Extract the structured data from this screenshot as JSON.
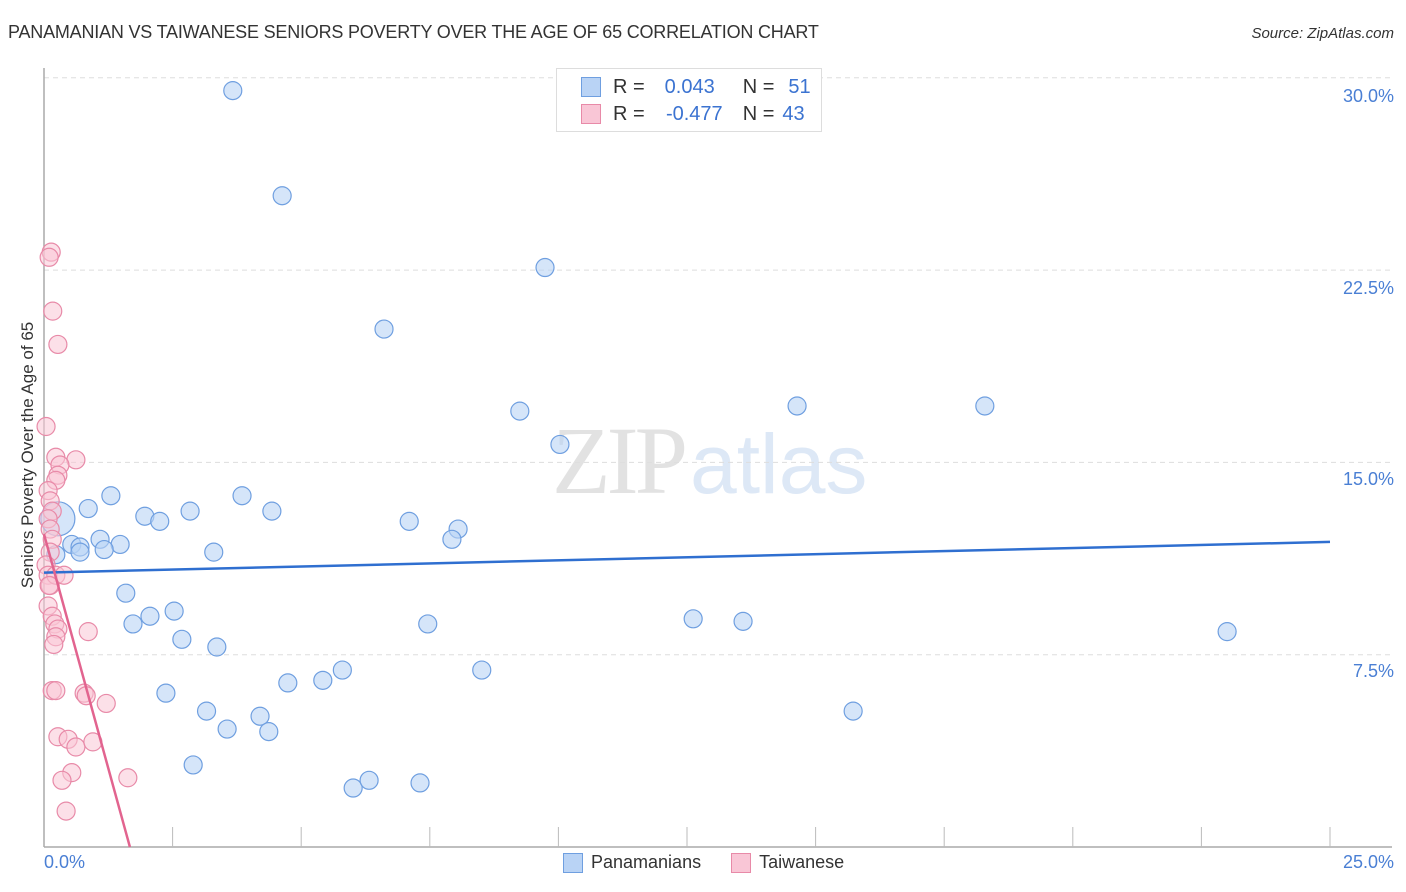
{
  "header": {
    "title": "PANAMANIAN VS TAIWANESE SENIORS POVERTY OVER THE AGE OF 65 CORRELATION CHART",
    "source": "Source: ZipAtlas.com"
  },
  "axes": {
    "y_label": "Seniors Poverty Over the Age of 65",
    "y_ticks": [
      "30.0%",
      "22.5%",
      "15.0%",
      "7.5%"
    ],
    "x_min_label": "0.0%",
    "x_max_label": "25.0%"
  },
  "legend_box": {
    "rows": [
      {
        "r_label": "R =",
        "r_value": "0.043",
        "n_label": "N =",
        "n_value": "51",
        "color": "#6f9fe0",
        "fill": "#b9d3f5"
      },
      {
        "r_label": "R =",
        "r_value": "-0.477",
        "n_label": "N =",
        "n_value": "43",
        "color": "#e88aa8",
        "fill": "#f9c6d6"
      }
    ]
  },
  "bottom_legend": {
    "items": [
      {
        "label": "Panamanians",
        "color": "#6f9fe0",
        "fill": "#b9d3f5"
      },
      {
        "label": "Taiwanese",
        "color": "#e88aa8",
        "fill": "#f9c6d6"
      }
    ]
  },
  "watermark": {
    "zip": "ZIP",
    "atlas": "atlas"
  },
  "colors": {
    "blue_line": "#2f6fd0",
    "pink_line": "#e2648f",
    "tick_text": "#4a7fd4",
    "grid": "#dddddd"
  },
  "chart_data": {
    "type": "scatter",
    "title": "PANAMANIAN VS TAIWANESE SENIORS POVERTY OVER THE AGE OF 65 CORRELATION CHART",
    "xlabel": "",
    "ylabel": "Seniors Poverty Over the Age of 65",
    "xlim": [
      0,
      25
    ],
    "ylim": [
      0,
      31
    ],
    "x_ticks": [
      "0.0%",
      "25.0%"
    ],
    "y_ticks": [
      7.5,
      15.0,
      22.5,
      30.0
    ],
    "grid": true,
    "legend_position": "top-center and bottom",
    "series": [
      {
        "name": "Panamanians",
        "R": 0.043,
        "N": 51,
        "trend": {
          "x": [
            0,
            25
          ],
          "y": [
            10.7,
            11.9
          ]
        },
        "points": [
          [
            3.67,
            29.5
          ],
          [
            4.63,
            25.4
          ],
          [
            9.74,
            22.6
          ],
          [
            6.61,
            20.2
          ],
          [
            9.25,
            17.0
          ],
          [
            14.64,
            17.2
          ],
          [
            18.29,
            17.2
          ],
          [
            10.03,
            15.7
          ],
          [
            0.27,
            12.8
          ],
          [
            0.86,
            13.2
          ],
          [
            1.3,
            13.7
          ],
          [
            1.96,
            12.9
          ],
          [
            2.25,
            12.7
          ],
          [
            2.84,
            13.1
          ],
          [
            3.85,
            13.7
          ],
          [
            4.43,
            13.1
          ],
          [
            7.1,
            12.7
          ],
          [
            8.05,
            12.4
          ],
          [
            7.93,
            12.0
          ],
          [
            0.54,
            11.8
          ],
          [
            0.7,
            11.7
          ],
          [
            1.09,
            12.0
          ],
          [
            1.48,
            11.8
          ],
          [
            0.7,
            11.5
          ],
          [
            1.17,
            11.6
          ],
          [
            3.3,
            11.5
          ],
          [
            0.23,
            11.4
          ],
          [
            1.59,
            9.9
          ],
          [
            1.73,
            8.7
          ],
          [
            2.06,
            9.0
          ],
          [
            2.53,
            9.2
          ],
          [
            2.68,
            8.1
          ],
          [
            3.36,
            7.8
          ],
          [
            7.46,
            8.7
          ],
          [
            12.62,
            8.9
          ],
          [
            13.59,
            8.8
          ],
          [
            23.0,
            8.4
          ],
          [
            5.8,
            6.9
          ],
          [
            8.51,
            6.9
          ],
          [
            4.74,
            6.4
          ],
          [
            5.42,
            6.5
          ],
          [
            2.37,
            6.0
          ],
          [
            3.16,
            5.3
          ],
          [
            15.73,
            5.3
          ],
          [
            4.2,
            5.1
          ],
          [
            3.56,
            4.6
          ],
          [
            4.37,
            4.5
          ],
          [
            2.9,
            3.2
          ],
          [
            6.01,
            2.3
          ],
          [
            6.32,
            2.6
          ],
          [
            7.31,
            2.5
          ]
        ]
      },
      {
        "name": "Taiwanese",
        "R": -0.477,
        "N": 43,
        "trend": {
          "x": [
            0,
            1.67
          ],
          "y": [
            12.2,
            0
          ]
        },
        "points": [
          [
            0.14,
            23.2
          ],
          [
            0.1,
            23.0
          ],
          [
            0.17,
            20.9
          ],
          [
            0.27,
            19.6
          ],
          [
            0.04,
            16.4
          ],
          [
            0.23,
            15.2
          ],
          [
            0.62,
            15.1
          ],
          [
            0.31,
            14.9
          ],
          [
            0.27,
            14.5
          ],
          [
            0.23,
            14.3
          ],
          [
            0.08,
            13.9
          ],
          [
            0.12,
            13.5
          ],
          [
            0.16,
            13.1
          ],
          [
            0.08,
            12.8
          ],
          [
            0.12,
            12.4
          ],
          [
            0.16,
            12.0
          ],
          [
            0.12,
            11.5
          ],
          [
            0.04,
            11.0
          ],
          [
            0.08,
            10.6
          ],
          [
            0.12,
            10.2
          ],
          [
            0.23,
            10.6
          ],
          [
            0.39,
            10.6
          ],
          [
            0.08,
            9.4
          ],
          [
            0.16,
            9.0
          ],
          [
            0.21,
            8.7
          ],
          [
            0.27,
            8.5
          ],
          [
            0.23,
            8.2
          ],
          [
            0.19,
            7.9
          ],
          [
            0.86,
            8.4
          ],
          [
            0.16,
            6.1
          ],
          [
            0.23,
            6.1
          ],
          [
            0.78,
            6.0
          ],
          [
            0.82,
            5.9
          ],
          [
            1.21,
            5.6
          ],
          [
            0.27,
            4.3
          ],
          [
            0.47,
            4.2
          ],
          [
            0.62,
            3.9
          ],
          [
            0.95,
            4.1
          ],
          [
            0.54,
            2.9
          ],
          [
            0.35,
            2.6
          ],
          [
            1.63,
            2.7
          ],
          [
            0.43,
            1.4
          ],
          [
            0.1,
            10.2
          ]
        ]
      }
    ]
  }
}
